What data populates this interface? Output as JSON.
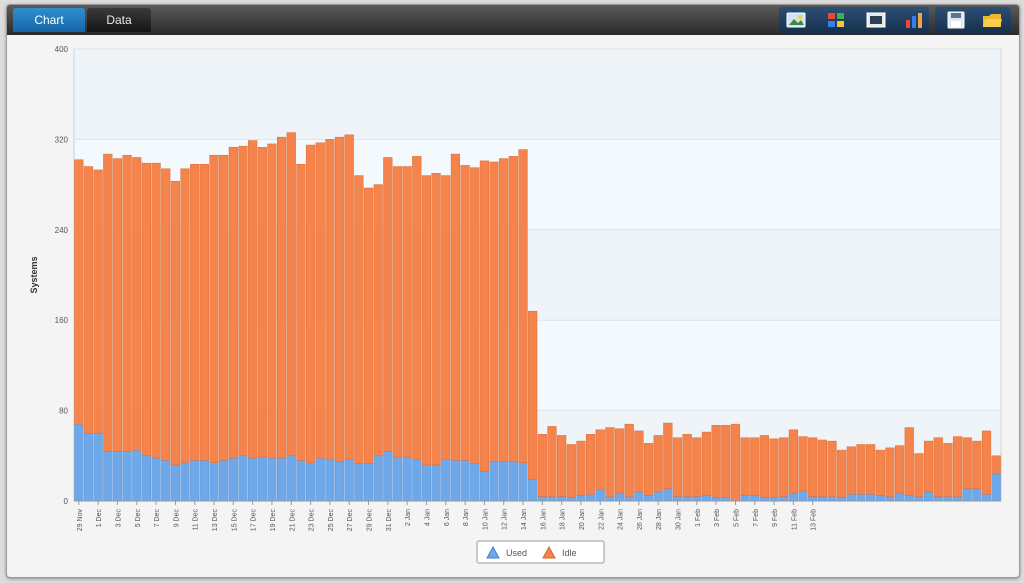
{
  "tabs": [
    {
      "label": "Chart",
      "active": true
    },
    {
      "label": "Data",
      "active": false
    }
  ],
  "toolbar": {
    "buttons": [
      {
        "icon": "image-export-icon"
      },
      {
        "icon": "chart-palette-icon"
      },
      {
        "icon": "fullscreen-icon"
      },
      {
        "icon": "bar-chart-icon"
      },
      {
        "icon": "save-icon"
      },
      {
        "icon": "open-folder-icon"
      }
    ]
  },
  "colors": {
    "used": "#6fa8e8",
    "idle": "#f4844c",
    "plot_bg": "#f3f9fc"
  },
  "chart_data": {
    "type": "bar",
    "stacked": true,
    "ylabel": "Systems",
    "ylim": [
      0,
      400
    ],
    "yticks": [
      0,
      80,
      160,
      240,
      320,
      400
    ],
    "grid": true,
    "legend_position": "bottom",
    "x_labels": [
      "29 Nov",
      "1 Dec",
      "3 Dec",
      "5 Dec",
      "7 Dec",
      "9 Dec",
      "11 Dec",
      "13 Dec",
      "15 Dec",
      "17 Dec",
      "19 Dec",
      "21 Dec",
      "23 Dec",
      "25 Dec",
      "27 Dec",
      "29 Dec",
      "31 Dec",
      "2 Jan",
      "4 Jan",
      "6 Jan",
      "8 Jan",
      "10 Jan",
      "12 Jan",
      "14 Jan",
      "16 Jan",
      "18 Jan",
      "20 Jan",
      "22 Jan",
      "24 Jan",
      "26 Jan",
      "28 Jan",
      "30 Jan",
      "1 Feb",
      "3 Feb",
      "5 Feb",
      "7 Feb",
      "9 Feb",
      "11 Feb",
      "13 Feb"
    ],
    "series": [
      {
        "name": "Used",
        "values": [
          68,
          60,
          60,
          44,
          44,
          44,
          45,
          40,
          38,
          36,
          32,
          34,
          36,
          36,
          34,
          36,
          38,
          40,
          38,
          39,
          38,
          38,
          40,
          36,
          34,
          38,
          37,
          35,
          37,
          33,
          33,
          40,
          44,
          39,
          39,
          37,
          32,
          32,
          37,
          36,
          36,
          33,
          26,
          35,
          35,
          35,
          34,
          19,
          4,
          4,
          4,
          3,
          5,
          6,
          10,
          4,
          7,
          4,
          8,
          5,
          8,
          11,
          4,
          4,
          4,
          5,
          3,
          3,
          0,
          5,
          5,
          3,
          3,
          4,
          7,
          9,
          4,
          4,
          4,
          3,
          6,
          6,
          6,
          5,
          4,
          7,
          5,
          4,
          8,
          4,
          4,
          4,
          11,
          11,
          6,
          24
        ]
      },
      {
        "name": "Idle",
        "values": [
          234,
          236,
          233,
          263,
          259,
          262,
          259,
          259,
          261,
          258,
          251,
          260,
          262,
          262,
          272,
          270,
          275,
          274,
          281,
          274,
          278,
          284,
          286,
          262,
          281,
          279,
          283,
          287,
          287,
          255,
          244,
          240,
          260,
          257,
          257,
          268,
          256,
          258,
          251,
          271,
          261,
          262,
          275,
          265,
          268,
          270,
          277,
          149,
          55,
          62,
          54,
          47,
          48,
          53,
          53,
          61,
          57,
          64,
          54,
          46,
          50,
          58,
          52,
          55,
          52,
          56,
          64,
          64,
          68,
          51,
          51,
          55,
          52,
          52,
          56,
          48,
          52,
          50,
          49,
          42,
          42,
          44,
          44,
          40,
          43,
          42,
          60,
          38,
          45,
          52,
          47,
          53,
          45,
          42,
          56,
          16
        ]
      }
    ]
  }
}
